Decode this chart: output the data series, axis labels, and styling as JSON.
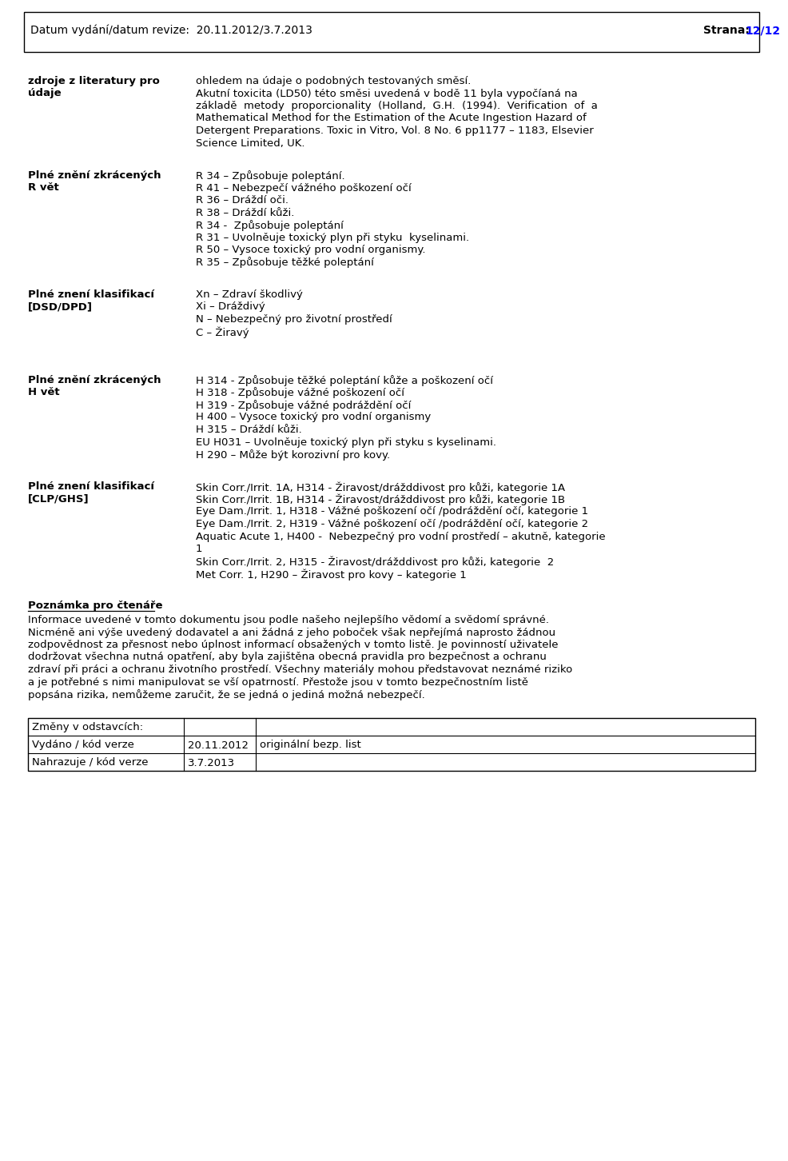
{
  "header_left": "Datum vydání/datum revize:  20.11.2012/3.7.2013",
  "header_right_black": "Strana:",
  "header_right_blue": "12/12",
  "bg_color": "#ffffff",
  "border_color": "#000000",
  "sections": [
    {
      "label": "zdroje z literatury pro\núdaje",
      "content": "ohledem na údaje o podobných testovaných směsí.\nAkutní toxicita (LD50) této směsi uvedená v bodě 11 byla vypočíaná na\nzákladě  metody  proporcionality  (Holland,  G.H.  (1994).  Verification  of  a\nMathematical Method for the Estimation of the Acute Ingestion Hazard of\nDetergent Preparations. Toxic in Vitro, Vol. 8 No. 6 pp1177 – 1183, Elsevier\nScience Limited, UK."
    },
    {
      "label": "Plné znění zkrácených\nR vět",
      "content": "R 34 – Způsobuje poleptání.\nR 41 – Nebezpečí vážného poškození očí\nR 36 – Dráždí oči.\nR 38 – Dráždí kůži.\nR 34 -  Způsobuje poleptání\nR 31 – Uvolněuje toxický plyn při styku  kyselinami.\nR 50 – Vysoce toxický pro vodní organismy.\nR 35 – Způsobuje těžké poleptání"
    },
    {
      "label": "Plné znení klasifikací\n[DSD/DPD]",
      "content": "Xn – Zdraví škodlivý\nXi – Dráždivý\nN – Nebezpečný pro životní prostředí\nC – Žiravý"
    },
    {
      "label": "Plné znění zkrácených\nH vět",
      "content": "H 314 - Způsobuje těžké poleptání kůže a poškození očí\nH 318 - Způsobuje vážné poškození očí\nH 319 - Způsobuje vážné podráždění očí\nH 400 – Vysoce toxický pro vodní organismy\nH 315 – Dráždí kůži.\nEU H031 – Uvolněuje toxický plyn při styku s kyselinami.\nH 290 – Může být korozivní pro kovy."
    },
    {
      "label": "Plné znení klasifikací\n[CLP/GHS]",
      "content": "Skin Corr./Irrit. 1A, H314 - Žiravost/drážddivost pro kůži, kategorie 1A\nSkin Corr./Irrit. 1B, H314 - Žiravost/drážddivost pro kůži, kategorie 1B\nEye Dam./Irrit. 1, H318 - Vážné poškození očí /podráždění očí, kategorie 1\nEye Dam./Irrit. 2, H319 - Vážné poškození očí /podráždění očí, kategorie 2\nAquatic Acute 1, H400 -  Nebezpečný pro vodní prostředí – akutně, kategorie\n1\nSkin Corr./Irrit. 2, H315 - Žiravost/drážddivost pro kůži, kategorie  2\nMet Corr. 1, H290 – Žiravost pro kovy – kategorie 1"
    }
  ],
  "poznamka_title": "Poznámka pro čtenáře",
  "poznamka_text": "Informace uvedené v tomto dokumentu jsou podle našeho nejlepšího vědomí a svědomí správné.\nNicméně ani výše uvedený dodavatel a ani žádná z jeho poboček však nepřejímá naprosto žádnou\nzodpovědnost za přesnost nebo úplnost informací obsažených v tomto listě. Je povinností uživatele\ndodržovat všechna nutná opatření, aby byla zajištěna obecná pravidla pro bezpečnost a ochranu\nzdraví při práci a ochranu životního prostředí. Všechny materiály mohou představovat neznámé riziko\na je potřebné s nimi manipulovat se vší opatrností. Přestože jsou v tomto bezpečnostním listě\npopsána rizika, nemůžeme zaručit, že se jedná o jediná možná nebezpečí.",
  "table_rows": [
    [
      "Změny v odstavcích:",
      "",
      ""
    ],
    [
      "Vydáno / kód verze",
      "20.11.2012",
      "originální bezp. list"
    ],
    [
      "Nahrazuje / kód verze",
      "3.7.2013",
      ""
    ]
  ],
  "font_size": 9.5,
  "label_font_size": 9.5,
  "header_font_size": 10,
  "text_color": "#000000",
  "blue_color": "#0000ff"
}
